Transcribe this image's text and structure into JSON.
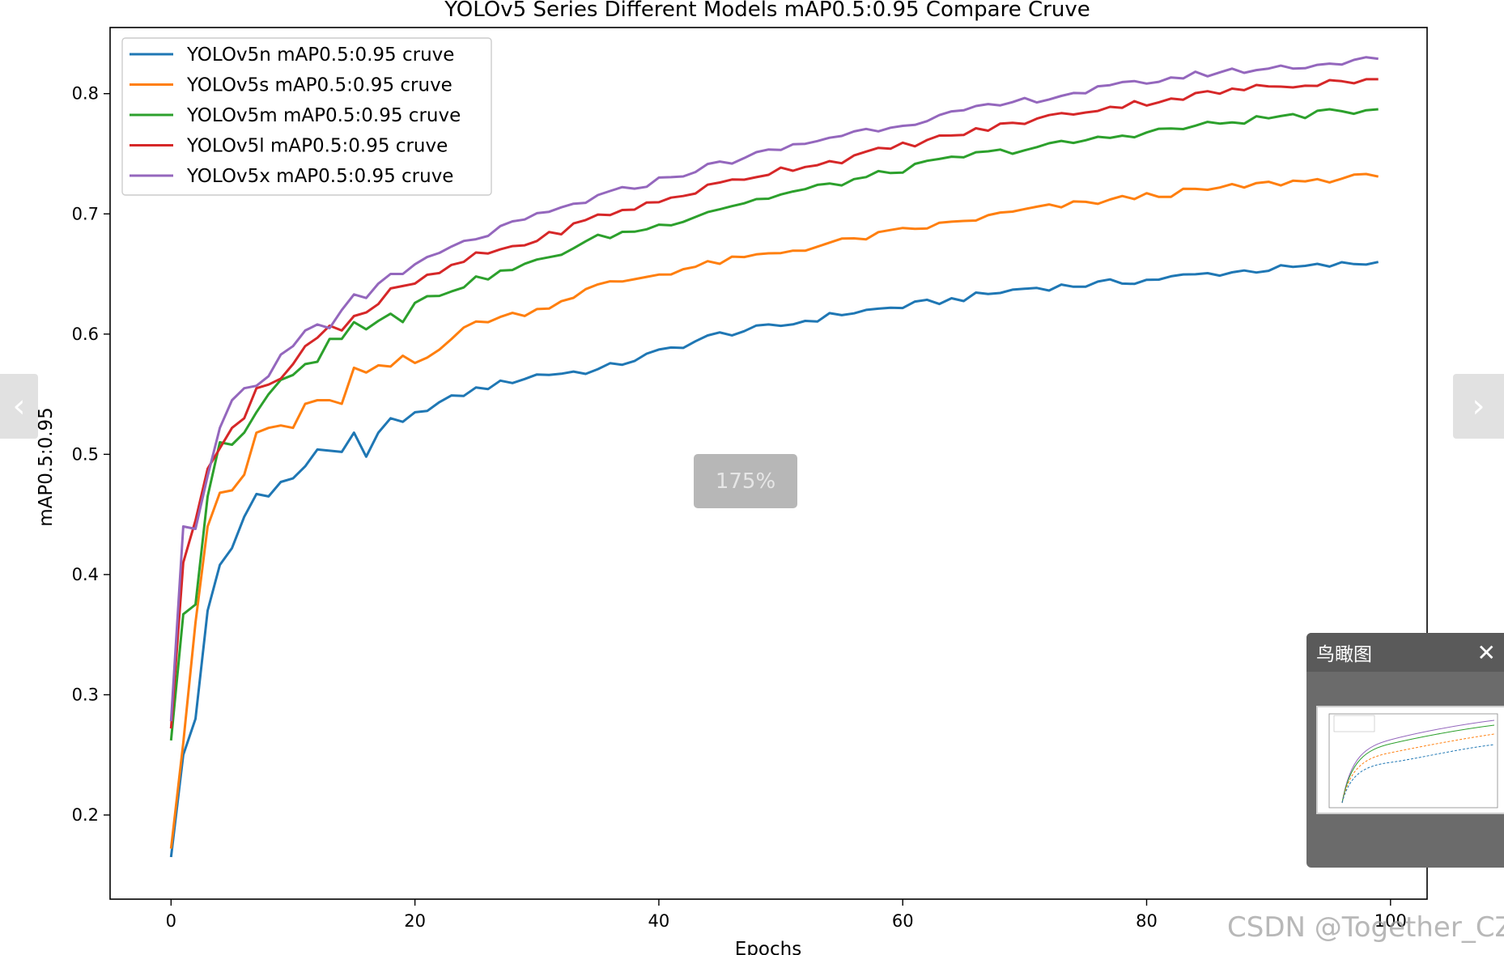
{
  "chart_data": {
    "type": "line",
    "title": "YOLOv5 Series Different Models mAP0.5:0.95 Compare Cruve",
    "xlabel": "Epochs",
    "ylabel": "mAP0.5:0.95",
    "xlim": [
      -5,
      103
    ],
    "ylim": [
      0.13,
      0.855
    ],
    "xticks": [
      0,
      20,
      40,
      60,
      80,
      100
    ],
    "yticks": [
      0.2,
      0.3,
      0.4,
      0.5,
      0.6,
      0.7,
      0.8
    ],
    "grid": false,
    "legend_position": "upper-left",
    "series": [
      {
        "name": "YOLOv5n mAP0.5:0.95 cruve",
        "color": "#1f77b4",
        "knots": [
          [
            0,
            0.165
          ],
          [
            1,
            0.25
          ],
          [
            2,
            0.28
          ],
          [
            3,
            0.37
          ],
          [
            4,
            0.408
          ],
          [
            5,
            0.422
          ],
          [
            6,
            0.448
          ],
          [
            7,
            0.467
          ],
          [
            8,
            0.465
          ],
          [
            9,
            0.477
          ],
          [
            10,
            0.48
          ],
          [
            11,
            0.49
          ],
          [
            12,
            0.504
          ],
          [
            13,
            0.503
          ],
          [
            14,
            0.502
          ],
          [
            15,
            0.518
          ],
          [
            16,
            0.498
          ],
          [
            17,
            0.518
          ],
          [
            18,
            0.53
          ],
          [
            19,
            0.527
          ],
          [
            20,
            0.535
          ],
          [
            25,
            0.554
          ],
          [
            30,
            0.566
          ],
          [
            35,
            0.57
          ],
          [
            40,
            0.585
          ],
          [
            45,
            0.6
          ],
          [
            50,
            0.607
          ],
          [
            55,
            0.617
          ],
          [
            60,
            0.623
          ],
          [
            65,
            0.63
          ],
          [
            70,
            0.638
          ],
          [
            75,
            0.641
          ],
          [
            80,
            0.645
          ],
          [
            85,
            0.65
          ],
          [
            90,
            0.654
          ],
          [
            95,
            0.657
          ],
          [
            99,
            0.66
          ]
        ]
      },
      {
        "name": "YOLOv5s mAP0.5:0.95 cruve",
        "color": "#ff7f0e",
        "knots": [
          [
            0,
            0.172
          ],
          [
            1,
            0.26
          ],
          [
            2,
            0.36
          ],
          [
            3,
            0.44
          ],
          [
            4,
            0.468
          ],
          [
            5,
            0.47
          ],
          [
            6,
            0.483
          ],
          [
            7,
            0.518
          ],
          [
            8,
            0.522
          ],
          [
            9,
            0.524
          ],
          [
            10,
            0.522
          ],
          [
            11,
            0.542
          ],
          [
            12,
            0.545
          ],
          [
            13,
            0.545
          ],
          [
            14,
            0.542
          ],
          [
            15,
            0.572
          ],
          [
            16,
            0.568
          ],
          [
            17,
            0.574
          ],
          [
            18,
            0.573
          ],
          [
            19,
            0.582
          ],
          [
            20,
            0.576
          ],
          [
            25,
            0.61
          ],
          [
            30,
            0.62
          ],
          [
            35,
            0.64
          ],
          [
            40,
            0.65
          ],
          [
            45,
            0.66
          ],
          [
            50,
            0.668
          ],
          [
            55,
            0.677
          ],
          [
            60,
            0.686
          ],
          [
            65,
            0.694
          ],
          [
            70,
            0.703
          ],
          [
            75,
            0.709
          ],
          [
            80,
            0.715
          ],
          [
            85,
            0.72
          ],
          [
            90,
            0.725
          ],
          [
            95,
            0.729
          ],
          [
            99,
            0.731
          ]
        ]
      },
      {
        "name": "YOLOv5m mAP0.5:0.95 cruve",
        "color": "#2ca02c",
        "knots": [
          [
            0,
            0.262
          ],
          [
            1,
            0.367
          ],
          [
            2,
            0.375
          ],
          [
            3,
            0.465
          ],
          [
            4,
            0.51
          ],
          [
            5,
            0.508
          ],
          [
            6,
            0.518
          ],
          [
            7,
            0.535
          ],
          [
            8,
            0.55
          ],
          [
            9,
            0.562
          ],
          [
            10,
            0.566
          ],
          [
            11,
            0.575
          ],
          [
            12,
            0.577
          ],
          [
            13,
            0.596
          ],
          [
            14,
            0.596
          ],
          [
            15,
            0.61
          ],
          [
            16,
            0.604
          ],
          [
            17,
            0.611
          ],
          [
            18,
            0.617
          ],
          [
            19,
            0.61
          ],
          [
            20,
            0.626
          ],
          [
            25,
            0.645
          ],
          [
            30,
            0.66
          ],
          [
            35,
            0.68
          ],
          [
            40,
            0.69
          ],
          [
            45,
            0.705
          ],
          [
            50,
            0.716
          ],
          [
            55,
            0.726
          ],
          [
            60,
            0.737
          ],
          [
            65,
            0.748
          ],
          [
            70,
            0.754
          ],
          [
            75,
            0.761
          ],
          [
            80,
            0.768
          ],
          [
            85,
            0.774
          ],
          [
            90,
            0.78
          ],
          [
            95,
            0.784
          ],
          [
            99,
            0.787
          ]
        ]
      },
      {
        "name": "YOLOv5l mAP0.5:0.95 cruve",
        "color": "#d62728",
        "knots": [
          [
            0,
            0.272
          ],
          [
            1,
            0.41
          ],
          [
            2,
            0.445
          ],
          [
            3,
            0.488
          ],
          [
            4,
            0.505
          ],
          [
            5,
            0.522
          ],
          [
            6,
            0.53
          ],
          [
            7,
            0.555
          ],
          [
            8,
            0.558
          ],
          [
            9,
            0.563
          ],
          [
            10,
            0.575
          ],
          [
            11,
            0.59
          ],
          [
            12,
            0.597
          ],
          [
            13,
            0.607
          ],
          [
            14,
            0.603
          ],
          [
            15,
            0.615
          ],
          [
            16,
            0.618
          ],
          [
            17,
            0.625
          ],
          [
            18,
            0.638
          ],
          [
            19,
            0.64
          ],
          [
            20,
            0.642
          ],
          [
            25,
            0.665
          ],
          [
            30,
            0.678
          ],
          [
            35,
            0.698
          ],
          [
            40,
            0.71
          ],
          [
            45,
            0.725
          ],
          [
            50,
            0.737
          ],
          [
            55,
            0.745
          ],
          [
            60,
            0.757
          ],
          [
            65,
            0.767
          ],
          [
            70,
            0.777
          ],
          [
            75,
            0.786
          ],
          [
            80,
            0.793
          ],
          [
            85,
            0.8
          ],
          [
            90,
            0.806
          ],
          [
            95,
            0.81
          ],
          [
            99,
            0.812
          ]
        ]
      },
      {
        "name": "YOLOv5x mAP0.5:0.95 cruve",
        "color": "#9467bd",
        "knots": [
          [
            0,
            0.278
          ],
          [
            1,
            0.44
          ],
          [
            2,
            0.438
          ],
          [
            3,
            0.482
          ],
          [
            4,
            0.522
          ],
          [
            5,
            0.545
          ],
          [
            6,
            0.555
          ],
          [
            7,
            0.557
          ],
          [
            8,
            0.565
          ],
          [
            9,
            0.583
          ],
          [
            10,
            0.59
          ],
          [
            11,
            0.603
          ],
          [
            12,
            0.608
          ],
          [
            13,
            0.605
          ],
          [
            14,
            0.62
          ],
          [
            15,
            0.633
          ],
          [
            16,
            0.63
          ],
          [
            17,
            0.642
          ],
          [
            18,
            0.65
          ],
          [
            19,
            0.65
          ],
          [
            20,
            0.658
          ],
          [
            25,
            0.68
          ],
          [
            30,
            0.698
          ],
          [
            35,
            0.714
          ],
          [
            40,
            0.728
          ],
          [
            45,
            0.742
          ],
          [
            50,
            0.754
          ],
          [
            55,
            0.766
          ],
          [
            60,
            0.775
          ],
          [
            65,
            0.785
          ],
          [
            70,
            0.794
          ],
          [
            75,
            0.802
          ],
          [
            80,
            0.81
          ],
          [
            85,
            0.817
          ],
          [
            90,
            0.821
          ],
          [
            95,
            0.825
          ],
          [
            99,
            0.829
          ]
        ]
      }
    ]
  },
  "viewer": {
    "zoom_label": "175%",
    "prev_icon": "chevron-left-icon",
    "next_icon": "chevron-right-icon",
    "prev_glyph": "‹",
    "next_glyph": "›",
    "birdseye_title": "鸟瞰图",
    "birdseye_close_glyph": "✕",
    "watermark": "CSDN @Together_CZ"
  }
}
